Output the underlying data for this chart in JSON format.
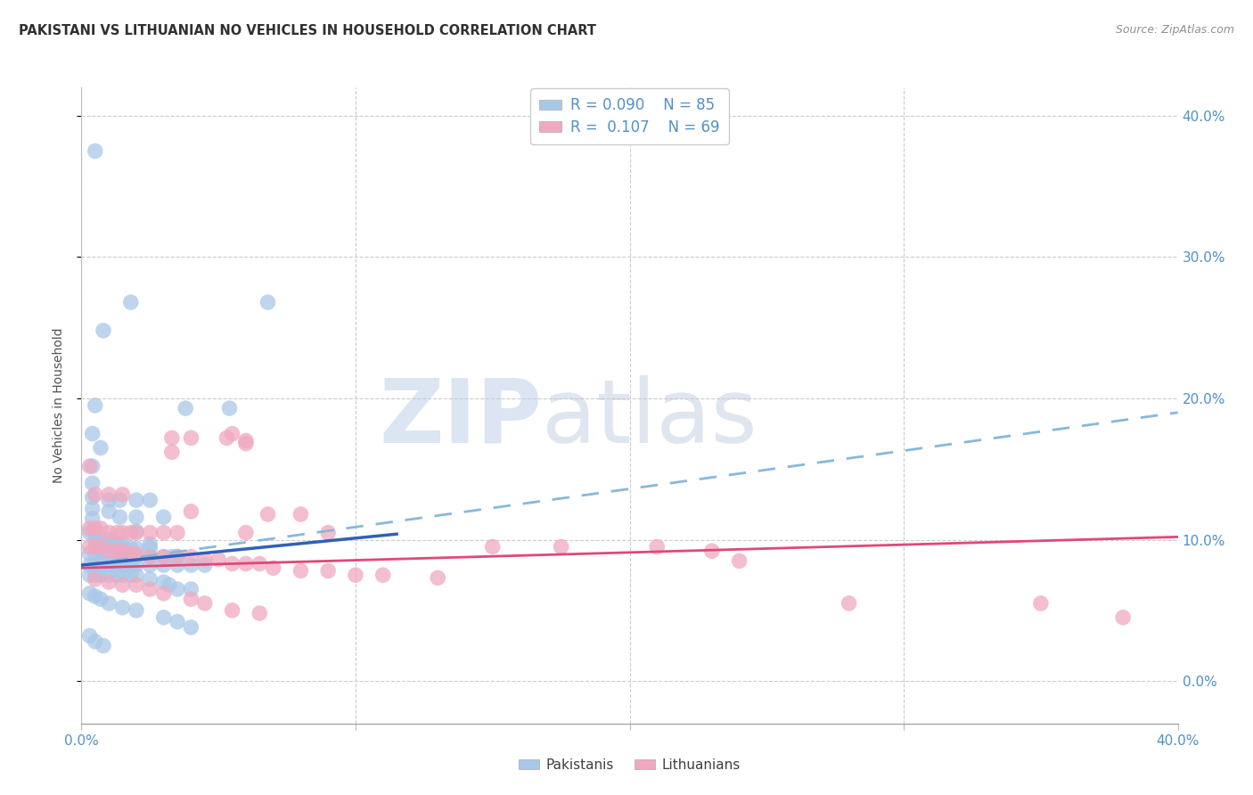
{
  "title": "PAKISTANI VS LITHUANIAN NO VEHICLES IN HOUSEHOLD CORRELATION CHART",
  "source": "Source: ZipAtlas.com",
  "ylabel": "No Vehicles in Household",
  "xlim": [
    0.0,
    0.4
  ],
  "ylim": [
    -0.03,
    0.42
  ],
  "ytick_vals": [
    0.0,
    0.1,
    0.2,
    0.3,
    0.4
  ],
  "xtick_vals": [
    0.0,
    0.1,
    0.2,
    0.3,
    0.4
  ],
  "legend_r_pak": "0.090",
  "legend_n_pak": "85",
  "legend_r_lit": "0.107",
  "legend_n_lit": "69",
  "pak_color": "#a8c8e8",
  "lit_color": "#f0a8c0",
  "pak_line_color": "#3060b8",
  "lit_line_color": "#e04878",
  "pak_dash_color": "#88b8d8",
  "watermark_zip": "ZIP",
  "watermark_atlas": "atlas",
  "grid_color": "#cccccc",
  "background": "#ffffff",
  "title_color": "#303030",
  "source_color": "#909090",
  "tick_color": "#5090c8",
  "ylabel_color": "#505050",
  "pak_scatter": [
    [
      0.005,
      0.375
    ],
    [
      0.018,
      0.268
    ],
    [
      0.068,
      0.268
    ],
    [
      0.008,
      0.248
    ],
    [
      0.005,
      0.195
    ],
    [
      0.004,
      0.175
    ],
    [
      0.038,
      0.193
    ],
    [
      0.054,
      0.193
    ],
    [
      0.007,
      0.165
    ],
    [
      0.004,
      0.152
    ],
    [
      0.004,
      0.14
    ],
    [
      0.004,
      0.13
    ],
    [
      0.004,
      0.122
    ],
    [
      0.01,
      0.128
    ],
    [
      0.004,
      0.115
    ],
    [
      0.014,
      0.128
    ],
    [
      0.02,
      0.128
    ],
    [
      0.025,
      0.128
    ],
    [
      0.01,
      0.12
    ],
    [
      0.014,
      0.116
    ],
    [
      0.02,
      0.116
    ],
    [
      0.02,
      0.106
    ],
    [
      0.03,
      0.116
    ],
    [
      0.003,
      0.105
    ],
    [
      0.005,
      0.105
    ],
    [
      0.005,
      0.1
    ],
    [
      0.007,
      0.1
    ],
    [
      0.01,
      0.1
    ],
    [
      0.01,
      0.097
    ],
    [
      0.01,
      0.094
    ],
    [
      0.013,
      0.097
    ],
    [
      0.015,
      0.097
    ],
    [
      0.015,
      0.094
    ],
    [
      0.018,
      0.094
    ],
    [
      0.02,
      0.094
    ],
    [
      0.025,
      0.097
    ],
    [
      0.025,
      0.094
    ],
    [
      0.003,
      0.09
    ],
    [
      0.005,
      0.09
    ],
    [
      0.007,
      0.09
    ],
    [
      0.008,
      0.088
    ],
    [
      0.01,
      0.088
    ],
    [
      0.012,
      0.088
    ],
    [
      0.015,
      0.088
    ],
    [
      0.02,
      0.088
    ],
    [
      0.025,
      0.088
    ],
    [
      0.03,
      0.088
    ],
    [
      0.033,
      0.088
    ],
    [
      0.035,
      0.088
    ],
    [
      0.003,
      0.082
    ],
    [
      0.005,
      0.082
    ],
    [
      0.007,
      0.082
    ],
    [
      0.01,
      0.082
    ],
    [
      0.012,
      0.082
    ],
    [
      0.015,
      0.082
    ],
    [
      0.018,
      0.082
    ],
    [
      0.02,
      0.082
    ],
    [
      0.025,
      0.082
    ],
    [
      0.03,
      0.082
    ],
    [
      0.035,
      0.082
    ],
    [
      0.04,
      0.082
    ],
    [
      0.045,
      0.082
    ],
    [
      0.003,
      0.075
    ],
    [
      0.005,
      0.075
    ],
    [
      0.007,
      0.075
    ],
    [
      0.01,
      0.075
    ],
    [
      0.013,
      0.075
    ],
    [
      0.015,
      0.075
    ],
    [
      0.018,
      0.075
    ],
    [
      0.02,
      0.075
    ],
    [
      0.025,
      0.072
    ],
    [
      0.03,
      0.07
    ],
    [
      0.032,
      0.068
    ],
    [
      0.035,
      0.065
    ],
    [
      0.04,
      0.065
    ],
    [
      0.003,
      0.062
    ],
    [
      0.005,
      0.06
    ],
    [
      0.007,
      0.058
    ],
    [
      0.01,
      0.055
    ],
    [
      0.015,
      0.052
    ],
    [
      0.02,
      0.05
    ],
    [
      0.03,
      0.045
    ],
    [
      0.035,
      0.042
    ],
    [
      0.04,
      0.038
    ],
    [
      0.003,
      0.032
    ],
    [
      0.005,
      0.028
    ],
    [
      0.008,
      0.025
    ]
  ],
  "lit_scatter": [
    [
      0.003,
      0.152
    ],
    [
      0.033,
      0.172
    ],
    [
      0.04,
      0.172
    ],
    [
      0.005,
      0.132
    ],
    [
      0.01,
      0.132
    ],
    [
      0.015,
      0.132
    ],
    [
      0.033,
      0.162
    ],
    [
      0.053,
      0.172
    ],
    [
      0.06,
      0.168
    ],
    [
      0.055,
      0.175
    ],
    [
      0.06,
      0.17
    ],
    [
      0.003,
      0.108
    ],
    [
      0.005,
      0.108
    ],
    [
      0.007,
      0.108
    ],
    [
      0.01,
      0.105
    ],
    [
      0.013,
      0.105
    ],
    [
      0.015,
      0.105
    ],
    [
      0.018,
      0.105
    ],
    [
      0.02,
      0.105
    ],
    [
      0.025,
      0.105
    ],
    [
      0.03,
      0.105
    ],
    [
      0.035,
      0.105
    ],
    [
      0.04,
      0.12
    ],
    [
      0.06,
      0.105
    ],
    [
      0.068,
      0.118
    ],
    [
      0.08,
      0.118
    ],
    [
      0.09,
      0.105
    ],
    [
      0.003,
      0.095
    ],
    [
      0.005,
      0.095
    ],
    [
      0.007,
      0.095
    ],
    [
      0.01,
      0.092
    ],
    [
      0.013,
      0.092
    ],
    [
      0.015,
      0.092
    ],
    [
      0.018,
      0.09
    ],
    [
      0.02,
      0.09
    ],
    [
      0.025,
      0.088
    ],
    [
      0.03,
      0.088
    ],
    [
      0.035,
      0.088
    ],
    [
      0.04,
      0.088
    ],
    [
      0.045,
      0.086
    ],
    [
      0.05,
      0.086
    ],
    [
      0.055,
      0.083
    ],
    [
      0.06,
      0.083
    ],
    [
      0.065,
      0.083
    ],
    [
      0.07,
      0.08
    ],
    [
      0.08,
      0.078
    ],
    [
      0.09,
      0.078
    ],
    [
      0.1,
      0.075
    ],
    [
      0.11,
      0.075
    ],
    [
      0.13,
      0.073
    ],
    [
      0.005,
      0.072
    ],
    [
      0.01,
      0.07
    ],
    [
      0.015,
      0.068
    ],
    [
      0.02,
      0.068
    ],
    [
      0.025,
      0.065
    ],
    [
      0.03,
      0.062
    ],
    [
      0.04,
      0.058
    ],
    [
      0.045,
      0.055
    ],
    [
      0.055,
      0.05
    ],
    [
      0.065,
      0.048
    ],
    [
      0.15,
      0.095
    ],
    [
      0.175,
      0.095
    ],
    [
      0.21,
      0.095
    ],
    [
      0.23,
      0.092
    ],
    [
      0.24,
      0.085
    ],
    [
      0.28,
      0.055
    ],
    [
      0.35,
      0.055
    ],
    [
      0.38,
      0.045
    ]
  ],
  "pak_trendline": [
    [
      0.0,
      0.082
    ],
    [
      0.4,
      0.19
    ]
  ],
  "pak_solid_line": [
    [
      0.0,
      0.082
    ],
    [
      0.115,
      0.104
    ]
  ],
  "lit_trendline": [
    [
      0.0,
      0.08
    ],
    [
      0.4,
      0.102
    ]
  ]
}
